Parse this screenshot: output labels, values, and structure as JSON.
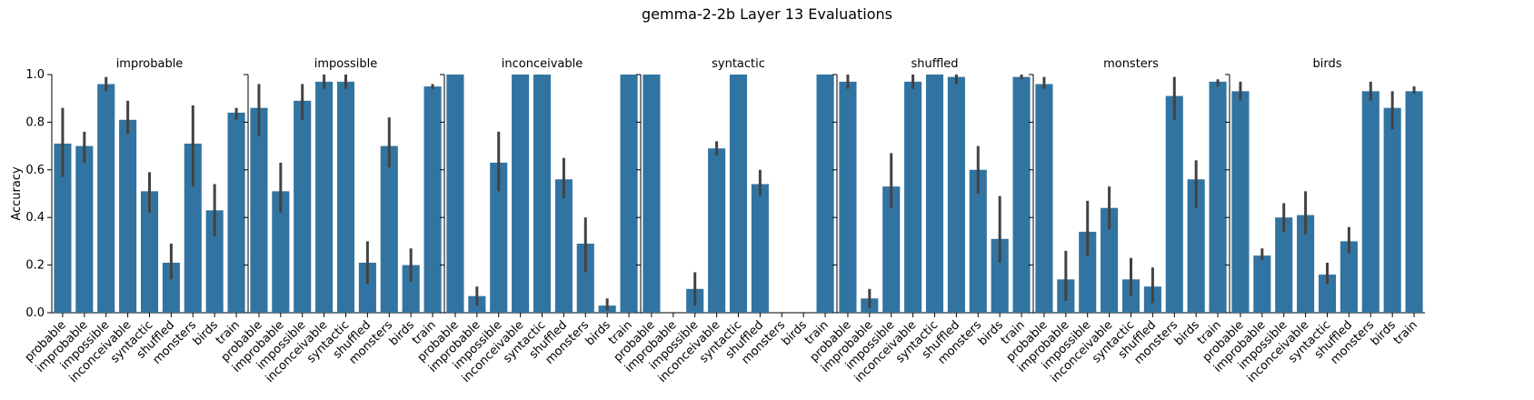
{
  "figure": {
    "title": "gemma-2-2b Layer 13 Evaluations"
  },
  "colors": {
    "bar": "#3274a1",
    "errorbar": "#424242",
    "axis": "#000000"
  },
  "chart_data": {
    "type": "bar",
    "ylabel": "Accuracy",
    "ylim": [
      0,
      1
    ],
    "yticks": [
      "0.0",
      "0.2",
      "0.4",
      "0.6",
      "0.8",
      "1.0"
    ],
    "categories": [
      "probable",
      "improbable",
      "impossible",
      "inconceivable",
      "syntactic",
      "shuffled",
      "monsters",
      "birds",
      "train"
    ],
    "panels": [
      {
        "title": "improbable",
        "values": [
          0.71,
          0.7,
          0.96,
          0.81,
          0.51,
          0.21,
          0.71,
          0.43,
          0.84
        ],
        "ci_low": [
          0.57,
          0.63,
          0.93,
          0.75,
          0.42,
          0.14,
          0.53,
          0.32,
          0.81
        ],
        "ci_high": [
          0.86,
          0.76,
          0.99,
          0.89,
          0.59,
          0.29,
          0.87,
          0.54,
          0.86
        ]
      },
      {
        "title": "impossible",
        "values": [
          0.86,
          0.51,
          0.89,
          0.97,
          0.97,
          0.21,
          0.7,
          0.2,
          0.95
        ],
        "ci_low": [
          0.74,
          0.42,
          0.81,
          0.94,
          0.94,
          0.12,
          0.61,
          0.13,
          0.94
        ],
        "ci_high": [
          0.96,
          0.63,
          0.96,
          1.0,
          1.0,
          0.3,
          0.82,
          0.27,
          0.96
        ]
      },
      {
        "title": "inconceivable",
        "values": [
          1.0,
          0.07,
          0.63,
          1.0,
          1.0,
          0.56,
          0.29,
          0.03,
          1.0
        ],
        "ci_low": [
          1.0,
          0.03,
          0.51,
          1.0,
          1.0,
          0.48,
          0.17,
          0.01,
          1.0
        ],
        "ci_high": [
          1.0,
          0.11,
          0.76,
          1.0,
          1.0,
          0.65,
          0.4,
          0.06,
          1.0
        ]
      },
      {
        "title": "syntactic",
        "values": [
          1.0,
          0.0,
          0.1,
          0.69,
          1.0,
          0.54,
          0.0,
          0.0,
          1.0
        ],
        "ci_low": [
          1.0,
          0.0,
          0.03,
          0.66,
          1.0,
          0.49,
          0.0,
          0.0,
          1.0
        ],
        "ci_high": [
          1.0,
          0.0,
          0.17,
          0.72,
          1.0,
          0.6,
          0.0,
          0.0,
          1.0
        ]
      },
      {
        "title": "shuffled",
        "values": [
          0.97,
          0.06,
          0.53,
          0.97,
          1.0,
          0.99,
          0.6,
          0.31,
          0.99
        ],
        "ci_low": [
          0.94,
          0.02,
          0.44,
          0.94,
          1.0,
          0.96,
          0.5,
          0.21,
          0.98
        ],
        "ci_high": [
          1.0,
          0.1,
          0.67,
          1.0,
          1.0,
          1.0,
          0.7,
          0.49,
          1.0
        ]
      },
      {
        "title": "monsters",
        "values": [
          0.96,
          0.14,
          0.34,
          0.44,
          0.14,
          0.11,
          0.91,
          0.56,
          0.97
        ],
        "ci_low": [
          0.94,
          0.05,
          0.24,
          0.35,
          0.07,
          0.04,
          0.81,
          0.44,
          0.95
        ],
        "ci_high": [
          0.99,
          0.26,
          0.47,
          0.53,
          0.23,
          0.19,
          0.99,
          0.64,
          0.98
        ]
      },
      {
        "title": "birds",
        "values": [
          0.93,
          0.24,
          0.4,
          0.41,
          0.16,
          0.3,
          0.93,
          0.86,
          0.93
        ],
        "ci_low": [
          0.89,
          0.22,
          0.34,
          0.33,
          0.12,
          0.25,
          0.89,
          0.77,
          0.92
        ],
        "ci_high": [
          0.97,
          0.27,
          0.46,
          0.51,
          0.21,
          0.36,
          0.97,
          0.93,
          0.95
        ]
      }
    ]
  }
}
